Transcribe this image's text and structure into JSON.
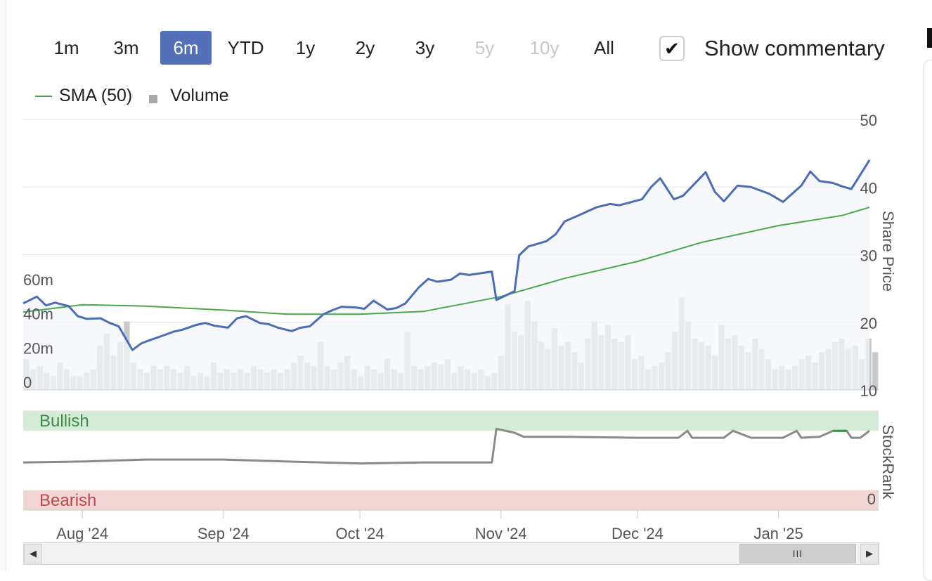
{
  "range_selector": {
    "buttons": [
      {
        "label": "1m",
        "state": "normal"
      },
      {
        "label": "3m",
        "state": "normal"
      },
      {
        "label": "6m",
        "state": "active"
      },
      {
        "label": "YTD",
        "state": "normal"
      },
      {
        "label": "1y",
        "state": "normal"
      },
      {
        "label": "2y",
        "state": "normal"
      },
      {
        "label": "3y",
        "state": "normal"
      },
      {
        "label": "5y",
        "state": "disabled"
      },
      {
        "label": "10y",
        "state": "disabled"
      },
      {
        "label": "All",
        "state": "normal"
      }
    ],
    "active_color": "#5470b8"
  },
  "commentary": {
    "label": "Show commentary",
    "checked": true,
    "check_glyph": "✔"
  },
  "legend": {
    "sma_label": "SMA (50)",
    "volume_label": "Volume"
  },
  "scrollbar": {
    "left_arrow": "◀",
    "right_arrow": "▶",
    "thumb_grip": "III"
  },
  "chart_data": [
    {
      "type": "line",
      "ylabel": "Share Price",
      "ylim": [
        10,
        50
      ],
      "y_ticks": [
        10,
        20,
        30,
        40,
        50
      ],
      "x_range": [
        "2024-07-19",
        "2025-01-23"
      ],
      "x_tick_labels": [
        {
          "label": "Aug '24",
          "date": "2024-08-01"
        },
        {
          "label": "Sep '24",
          "date": "2024-09-01"
        },
        {
          "label": "Oct '24",
          "date": "2024-10-01"
        },
        {
          "label": "Nov '24",
          "date": "2024-11-01"
        },
        {
          "label": "Dec '24",
          "date": "2024-12-01"
        },
        {
          "label": "Jan '25",
          "date": "2025-01-01"
        }
      ],
      "grid": true,
      "legend_position": "top-left",
      "colors": {
        "price": "#4c6db3",
        "sma": "#4aa84a",
        "volume": "#c8c9cc",
        "area": "#f3f5fa"
      },
      "series": [
        {
          "name": "Share Price",
          "points": [
            [
              "2024-07-19",
              22.8
            ],
            [
              "2024-07-22",
              23.8
            ],
            [
              "2024-07-24",
              22.5
            ],
            [
              "2024-07-26",
              22.9
            ],
            [
              "2024-07-29",
              22.4
            ],
            [
              "2024-07-31",
              20.9
            ],
            [
              "2024-08-02",
              20.5
            ],
            [
              "2024-08-05",
              20.6
            ],
            [
              "2024-08-07",
              19.9
            ],
            [
              "2024-08-09",
              19.4
            ],
            [
              "2024-08-12",
              15.9
            ],
            [
              "2024-08-14",
              16.9
            ],
            [
              "2024-08-16",
              17.4
            ],
            [
              "2024-08-19",
              18.1
            ],
            [
              "2024-08-21",
              18.6
            ],
            [
              "2024-08-23",
              18.9
            ],
            [
              "2024-08-26",
              19.6
            ],
            [
              "2024-08-28",
              19.9
            ],
            [
              "2024-08-30",
              19.5
            ],
            [
              "2024-09-02",
              19.2
            ],
            [
              "2024-09-04",
              20.6
            ],
            [
              "2024-09-06",
              20.9
            ],
            [
              "2024-09-09",
              19.9
            ],
            [
              "2024-09-11",
              19.7
            ],
            [
              "2024-09-13",
              19.2
            ],
            [
              "2024-09-16",
              18.7
            ],
            [
              "2024-09-18",
              19.2
            ],
            [
              "2024-09-20",
              19.4
            ],
            [
              "2024-09-23",
              21.2
            ],
            [
              "2024-09-25",
              21.8
            ],
            [
              "2024-09-27",
              22.3
            ],
            [
              "2024-09-30",
              22.2
            ],
            [
              "2024-10-02",
              22.0
            ],
            [
              "2024-10-04",
              23.2
            ],
            [
              "2024-10-07",
              21.9
            ],
            [
              "2024-10-09",
              22.1
            ],
            [
              "2024-10-11",
              22.8
            ],
            [
              "2024-10-14",
              25.2
            ],
            [
              "2024-10-16",
              26.4
            ],
            [
              "2024-10-18",
              26.0
            ],
            [
              "2024-10-21",
              26.3
            ],
            [
              "2024-10-23",
              27.2
            ],
            [
              "2024-10-25",
              27.0
            ],
            [
              "2024-10-28",
              27.3
            ],
            [
              "2024-10-30",
              27.5
            ],
            [
              "2024-10-31",
              23.3
            ],
            [
              "2024-11-04",
              24.6
            ],
            [
              "2024-11-05",
              29.9
            ],
            [
              "2024-11-07",
              31.2
            ],
            [
              "2024-11-11",
              32.0
            ],
            [
              "2024-11-13",
              33.0
            ],
            [
              "2024-11-15",
              34.9
            ],
            [
              "2024-11-18",
              35.8
            ],
            [
              "2024-11-20",
              36.4
            ],
            [
              "2024-11-22",
              37.0
            ],
            [
              "2024-11-25",
              37.5
            ],
            [
              "2024-11-27",
              37.3
            ],
            [
              "2024-12-02",
              38.2
            ],
            [
              "2024-12-04",
              40.0
            ],
            [
              "2024-12-06",
              41.3
            ],
            [
              "2024-12-09",
              38.2
            ],
            [
              "2024-12-11",
              38.7
            ],
            [
              "2024-12-13",
              40.1
            ],
            [
              "2024-12-16",
              42.2
            ],
            [
              "2024-12-18",
              39.3
            ],
            [
              "2024-12-20",
              37.9
            ],
            [
              "2024-12-23",
              40.2
            ],
            [
              "2024-12-26",
              40.0
            ],
            [
              "2024-12-30",
              39.0
            ],
            [
              "2025-01-02",
              37.8
            ],
            [
              "2025-01-06",
              40.2
            ],
            [
              "2025-01-08",
              42.3
            ],
            [
              "2025-01-10",
              40.9
            ],
            [
              "2025-01-13",
              40.6
            ],
            [
              "2025-01-15",
              40.1
            ],
            [
              "2025-01-17",
              39.7
            ],
            [
              "2025-01-21",
              44.0
            ]
          ]
        },
        {
          "name": "SMA (50)",
          "points": [
            [
              "2024-07-19",
              21.5
            ],
            [
              "2024-08-01",
              22.6
            ],
            [
              "2024-08-15",
              22.4
            ],
            [
              "2024-09-01",
              21.8
            ],
            [
              "2024-09-15",
              21.2
            ],
            [
              "2024-10-01",
              21.2
            ],
            [
              "2024-10-15",
              21.6
            ],
            [
              "2024-11-01",
              23.8
            ],
            [
              "2024-11-15",
              26.5
            ],
            [
              "2024-12-01",
              29.0
            ],
            [
              "2024-12-15",
              31.8
            ],
            [
              "2025-01-01",
              34.3
            ],
            [
              "2025-01-15",
              35.8
            ],
            [
              "2025-01-21",
              37.0
            ]
          ]
        },
        {
          "name": "Volume",
          "axis_label_ticks": [
            "0",
            "20m",
            "40m",
            "60m"
          ],
          "ylim_millions": [
            0,
            80
          ],
          "values_millions": [
            18,
            12,
            14,
            10,
            8,
            16,
            12,
            8,
            8,
            10,
            12,
            26,
            33,
            20,
            28,
            40,
            16,
            12,
            10,
            14,
            12,
            14,
            12,
            10,
            14,
            8,
            10,
            8,
            16,
            10,
            12,
            10,
            12,
            10,
            14,
            12,
            10,
            12,
            10,
            12,
            16,
            20,
            16,
            14,
            28,
            14,
            12,
            16,
            20,
            12,
            8,
            14,
            12,
            10,
            18,
            12,
            10,
            34,
            14,
            12,
            14,
            16,
            15,
            18,
            10,
            14,
            12,
            10,
            12,
            8,
            10,
            20,
            50,
            34,
            32,
            52,
            40,
            28,
            24,
            36,
            26,
            28,
            22,
            16,
            30,
            40,
            32,
            38,
            30,
            28,
            32,
            18,
            20,
            12,
            14,
            16,
            22,
            34,
            54,
            40,
            30,
            28,
            26,
            20,
            38,
            30,
            32,
            26,
            22,
            30,
            24,
            18,
            12,
            14,
            12,
            14,
            18,
            20,
            16,
            22,
            24,
            28,
            30,
            24,
            26,
            18,
            30,
            22
          ]
        }
      ]
    },
    {
      "type": "line",
      "ylabel": "StockRank",
      "ylim": [
        0,
        100
      ],
      "bands": [
        {
          "label": "Bullish",
          "range": [
            80,
            100
          ],
          "color": "#d6ead8",
          "text_color": "#3b8a45"
        },
        {
          "label": "Bearish",
          "range": [
            0,
            20
          ],
          "color": "#f2d6d6",
          "text_color": "#b94a4a"
        }
      ],
      "y_tick_labels": [
        "0"
      ],
      "series": [
        {
          "name": "StockRank",
          "points": [
            [
              "2024-07-19",
              48
            ],
            [
              "2024-08-01",
              49
            ],
            [
              "2024-08-15",
              51
            ],
            [
              "2024-09-01",
              51
            ],
            [
              "2024-09-15",
              49
            ],
            [
              "2024-10-01",
              47
            ],
            [
              "2024-10-15",
              48
            ],
            [
              "2024-10-30",
              48
            ],
            [
              "2024-10-31",
              82
            ],
            [
              "2024-11-04",
              78
            ],
            [
              "2024-11-06",
              74
            ],
            [
              "2024-11-15",
              74
            ],
            [
              "2024-12-01",
              73
            ],
            [
              "2024-12-10",
              73
            ],
            [
              "2024-12-12",
              80
            ],
            [
              "2024-12-13",
              73
            ],
            [
              "2024-12-20",
              73
            ],
            [
              "2024-12-22",
              80
            ],
            [
              "2024-12-26",
              73
            ],
            [
              "2025-01-02",
              73
            ],
            [
              "2025-01-05",
              80
            ],
            [
              "2025-01-06",
              73
            ],
            [
              "2025-01-10",
              74
            ],
            [
              "2025-01-13",
              80
            ],
            [
              "2025-01-16",
              80
            ],
            [
              "2025-01-17",
              73
            ],
            [
              "2025-01-19",
              73
            ],
            [
              "2025-01-21",
              80
            ]
          ]
        }
      ]
    }
  ]
}
